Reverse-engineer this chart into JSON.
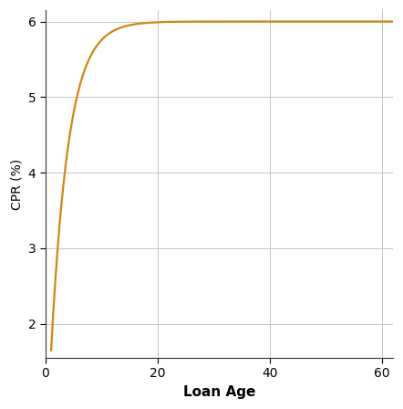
{
  "title": "",
  "xlabel": "Loan Age",
  "ylabel": "CPR (%)",
  "line_color": "#D4860A",
  "line_width": 1.6,
  "xlim": [
    0,
    62
  ],
  "ylim": [
    1.55,
    6.15
  ],
  "xticks": [
    0,
    20,
    40,
    60
  ],
  "yticks": [
    2,
    3,
    4,
    5,
    6
  ],
  "grid_color": "#bbbbbb",
  "grid_linestyle": "-",
  "grid_linewidth": 0.6,
  "background_color": "#ffffff",
  "cpr_max": 6.0,
  "cpr_min": 1.65,
  "seasoning_speed": 0.32,
  "age_start": 1,
  "age_end": 62,
  "xlabel_fontsize": 11,
  "xlabel_bold": true,
  "ylabel_fontsize": 10,
  "tick_fontsize": 10
}
